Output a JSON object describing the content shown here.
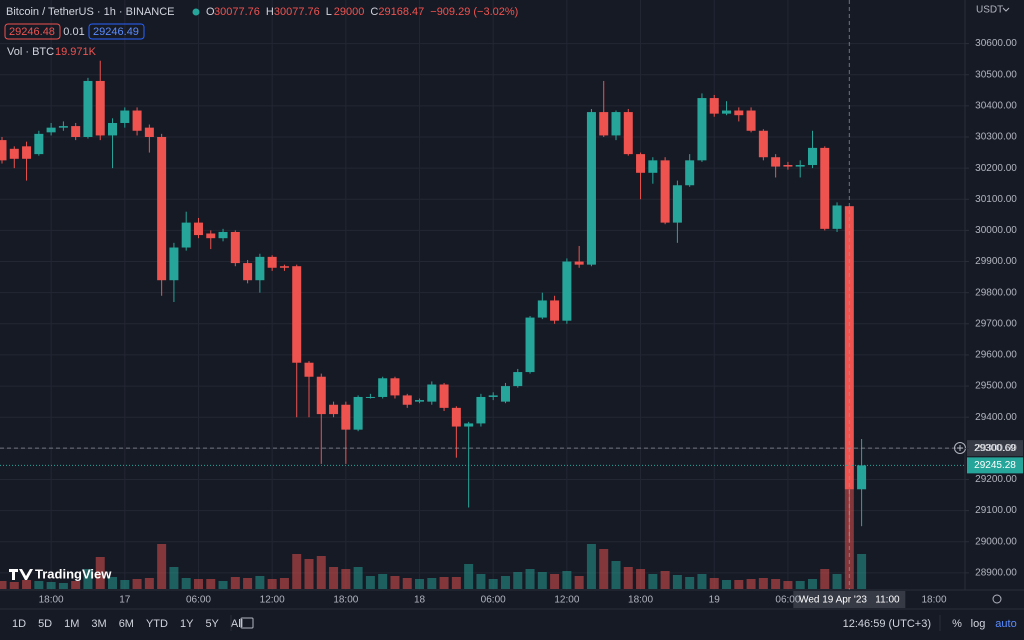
{
  "header": {
    "symbol": "Bitcoin / TetherUS · 1h · BINANCE",
    "ohlc_labels": [
      "O",
      "H",
      "L",
      "C"
    ],
    "change": "−909.29 (−3.02%)",
    "bid": 29246.48,
    "spread": 0.01,
    "ask": 29246.49,
    "volume_name": "Vol · BTC"
  },
  "brand": "TradingView",
  "currency": "USDT",
  "crosshair": {
    "price": 29300.69,
    "time": "Wed 19 Apr '23   11:00",
    "index": 69
  },
  "extra_x_label": "18:00",
  "toolbar": {
    "periods": [
      "1D",
      "5D",
      "1M",
      "3M",
      "6M",
      "YTD",
      "1Y",
      "5Y",
      "All"
    ],
    "clock": "12:46:59 (UTC+3)",
    "percent": "%",
    "log": "log",
    "auto": "auto"
  },
  "chart_data": {
    "type": "candlestick",
    "title": "Bitcoin / TetherUS · 1h · BINANCE",
    "up_color": "#26a69a",
    "down_color": "#ef5350",
    "grid": true,
    "log_scale": false,
    "categories": [
      null,
      null,
      null,
      null,
      "18:00",
      null,
      null,
      null,
      null,
      null,
      "17",
      null,
      null,
      null,
      null,
      null,
      "06:00",
      null,
      null,
      null,
      null,
      null,
      "12:00",
      null,
      null,
      null,
      null,
      null,
      "18:00",
      null,
      null,
      null,
      null,
      null,
      "18",
      null,
      null,
      null,
      null,
      null,
      "06:00",
      null,
      null,
      null,
      null,
      null,
      "12:00",
      null,
      null,
      null,
      null,
      null,
      "18:00",
      null,
      null,
      null,
      null,
      null,
      "19",
      null,
      null,
      null,
      null,
      null,
      "06:00",
      null,
      null,
      null,
      null,
      null,
      null
    ],
    "open": [
      30290,
      30262,
      30270,
      30245,
      30315,
      30330,
      30335,
      30300,
      30480,
      30305,
      30345,
      30385,
      30330,
      30300,
      29840,
      29945,
      30025,
      29990,
      29975,
      29995,
      29895,
      29840,
      29915,
      29885,
      29885,
      29575,
      29530,
      29440,
      29440,
      29360,
      29465,
      29465,
      29525,
      29470,
      29450,
      29450,
      29505,
      29430,
      29370,
      29380,
      29465,
      29450,
      29500,
      29545,
      29720,
      29775,
      29710,
      29900,
      29890,
      30380,
      30305,
      30380,
      30245,
      30185,
      30225,
      30025,
      30145,
      30225,
      30425,
      30375,
      30385,
      30385,
      30320,
      30235,
      30210,
      30205,
      30210,
      30265,
      30005,
      30077.76,
      29168.47
    ],
    "high": [
      30300,
      30270,
      30285,
      30320,
      30345,
      30350,
      30345,
      30490,
      30545,
      30360,
      30395,
      30395,
      30340,
      30310,
      29960,
      30060,
      30040,
      30000,
      30005,
      30000,
      29905,
      29925,
      29920,
      29890,
      29890,
      29580,
      29540,
      29450,
      29450,
      29470,
      29475,
      29530,
      29530,
      29475,
      29460,
      29515,
      29510,
      29435,
      29385,
      29475,
      29480,
      29510,
      29555,
      29725,
      29800,
      29790,
      29910,
      29950,
      30390,
      30480,
      30385,
      30390,
      30250,
      30235,
      30235,
      30160,
      30245,
      30440,
      30435,
      30415,
      30395,
      30395,
      30325,
      30245,
      30220,
      30225,
      30320,
      30270,
      30090,
      30077.76,
      29330
    ],
    "low": [
      30215,
      30200,
      30160,
      30240,
      30305,
      30320,
      30290,
      30295,
      30290,
      30200,
      30330,
      30305,
      30250,
      29790,
      29770,
      29935,
      29975,
      29940,
      29965,
      29885,
      29830,
      29800,
      29870,
      29870,
      29400,
      29400,
      29250,
      29400,
      29250,
      29355,
      29460,
      29460,
      29460,
      29430,
      29445,
      29440,
      29420,
      29270,
      29110,
      29370,
      29455,
      29445,
      29495,
      29540,
      29715,
      29700,
      29700,
      29880,
      29885,
      30300,
      30290,
      30240,
      30100,
      30150,
      30020,
      29960,
      30140,
      30220,
      30365,
      30370,
      30350,
      30315,
      30225,
      30170,
      30195,
      30170,
      30200,
      30000,
      29995,
      29000,
      29050
    ],
    "close": [
      30225,
      30230,
      30230,
      30310,
      30330,
      30335,
      30300,
      30480,
      30305,
      30345,
      30385,
      30320,
      30300,
      29840,
      29945,
      30025,
      29985,
      29975,
      29995,
      29895,
      29840,
      29915,
      29880,
      29880,
      29575,
      29530,
      29410,
      29410,
      29360,
      29465,
      29465,
      29525,
      29470,
      29440,
      29455,
      29505,
      29430,
      29370,
      29380,
      29465,
      29470,
      29500,
      29545,
      29720,
      29775,
      29710,
      29900,
      29890,
      30380,
      30305,
      30380,
      30245,
      30185,
      30225,
      30025,
      30145,
      30225,
      30425,
      30375,
      30385,
      30370,
      30320,
      30235,
      30205,
      30205,
      30210,
      30265,
      30005,
      30080,
      29168.47,
      29245.28
    ],
    "volume": [
      1600,
      1400,
      1800,
      1600,
      1400,
      1200,
      1600,
      4000,
      6400,
      2400,
      1800,
      2000,
      2200,
      9000,
      4400,
      2200,
      2000,
      2000,
      1600,
      2400,
      2200,
      2600,
      2000,
      2200,
      7000,
      6000,
      6600,
      4400,
      4000,
      4400,
      2600,
      3000,
      2600,
      2200,
      2000,
      2200,
      2400,
      2400,
      5000,
      3000,
      2000,
      2600,
      3400,
      4000,
      3400,
      3000,
      3600,
      2600,
      9000,
      8000,
      5600,
      4400,
      4000,
      3000,
      3600,
      2800,
      2400,
      3000,
      2200,
      1800,
      1800,
      2000,
      2200,
      2000,
      1600,
      1600,
      2000,
      4000,
      3000,
      19971,
      7000
    ],
    "volume_label": "19.971K",
    "ylim": [
      28845,
      30740
    ],
    "yticks": [
      {
        "value": 28900,
        "label": "28900.00"
      },
      {
        "value": 29000,
        "label": "29000.00"
      },
      {
        "value": 29100,
        "label": "29100.00"
      },
      {
        "value": 29200,
        "label": "29200.00"
      },
      {
        "value": 29300,
        "label": "29300.00"
      },
      {
        "value": 29400,
        "label": "29400.00"
      },
      {
        "value": 29500,
        "label": "29500.00"
      },
      {
        "value": 29600,
        "label": "29600.00"
      },
      {
        "value": 29700,
        "label": "29700.00"
      },
      {
        "value": 29800,
        "label": "29800.00"
      },
      {
        "value": 29900,
        "label": "29900.00"
      },
      {
        "value": 30000,
        "label": "30000.00"
      },
      {
        "value": 30100,
        "label": "30100.00"
      },
      {
        "value": 30200,
        "label": "30200.00"
      },
      {
        "value": 30300,
        "label": "30300.00"
      },
      {
        "value": 30400,
        "label": "30400.00"
      },
      {
        "value": 30500,
        "label": "30500.00"
      },
      {
        "value": 30600,
        "label": "30600.00"
      }
    ]
  }
}
